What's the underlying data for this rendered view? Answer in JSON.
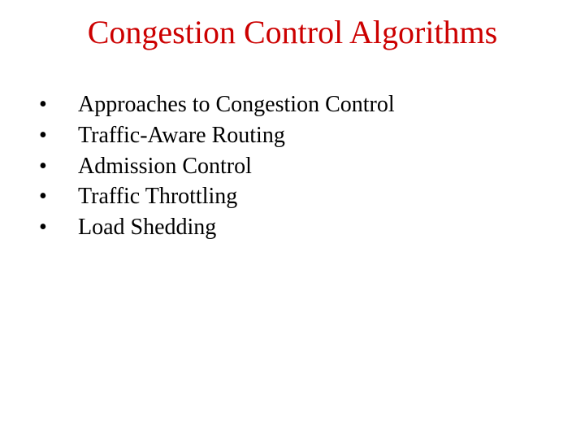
{
  "slide": {
    "title": "Congestion Control Algorithms",
    "title_color": "#cc0000",
    "text_color": "#000000",
    "background_color": "#ffffff",
    "title_fontsize": 40,
    "bullet_fontsize": 28,
    "bullet_char": "•",
    "bullets": [
      {
        "text": "Approaches to Congestion Control"
      },
      {
        "text": "Traffic-Aware Routing"
      },
      {
        "text": "Admission Control"
      },
      {
        "text": "Traffic Throttling"
      },
      {
        "text": "Load Shedding"
      }
    ]
  }
}
